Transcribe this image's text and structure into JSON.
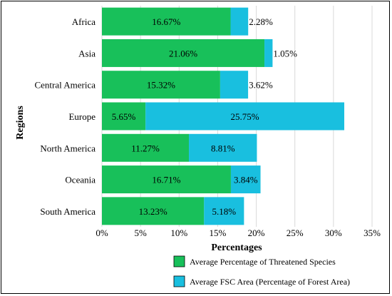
{
  "chart_data": {
    "type": "bar",
    "orientation": "horizontal",
    "stacked": true,
    "title": "",
    "xlabel": "Percentages",
    "ylabel": "Regions",
    "xlim": [
      0,
      35
    ],
    "xticks": [
      "0%",
      "5%",
      "10%",
      "15%",
      "20%",
      "25%",
      "30%",
      "35%"
    ],
    "grid": true,
    "legend_position": "bottom",
    "categories": [
      "Africa",
      "Asia",
      "Central America",
      "Europe",
      "North America",
      "Oceania",
      "South America"
    ],
    "series": [
      {
        "name": "Average Percentage of Threatened Species",
        "color": "#18c05a",
        "values": [
          16.67,
          21.06,
          15.32,
          5.65,
          11.27,
          16.71,
          13.23
        ],
        "labels": [
          "16.67%",
          "21.06%",
          "15.32%",
          "5.65%",
          "11.27%",
          "16.71%",
          "13.23%"
        ]
      },
      {
        "name": "Average FSC Area (Percentage of Forest Area)",
        "color": "#19bfdf",
        "values": [
          2.28,
          1.05,
          3.62,
          25.75,
          8.81,
          3.84,
          5.18
        ],
        "labels": [
          "2.28%",
          "1.05%",
          "3.62%",
          "25.75%",
          "8.81%",
          "3.84%",
          "5.18%"
        ]
      }
    ]
  }
}
